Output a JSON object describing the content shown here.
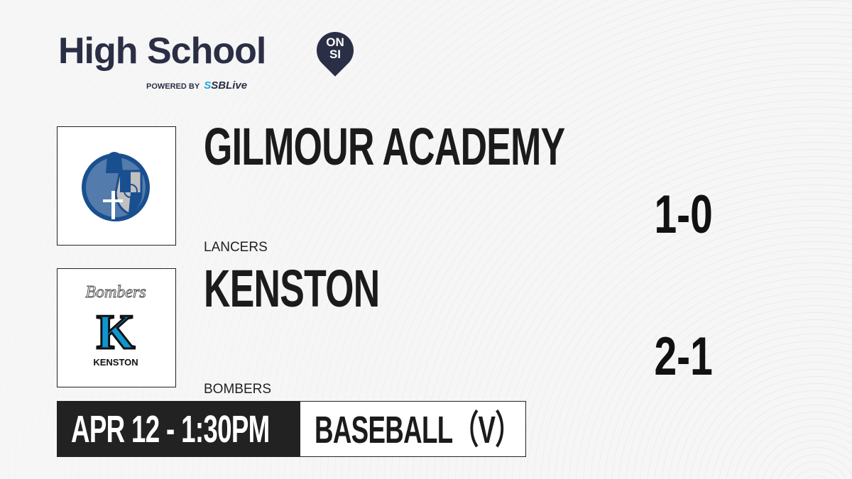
{
  "brand": {
    "title": "High School",
    "pin": "ON SI",
    "powered_by": "POWERED BY",
    "partner": "SBLive",
    "accent": "#1ca7e3",
    "dark": "#2b2f45"
  },
  "teams": [
    {
      "name": "GILMOUR ACADEMY",
      "mascot": "LANCERS",
      "record": "1-0",
      "logo": "knight-logo",
      "logo_color": "#1a4f8f"
    },
    {
      "name": "KENSTON",
      "mascot": "BOMBERS",
      "record": "2-1",
      "logo": "k-bombers-logo",
      "logo_text": "KENSTON",
      "logo_script": "Bombers",
      "logo_color": "#0f96d0"
    }
  ],
  "game": {
    "datetime": "APR 12 - 1:30PM",
    "sport": "BASEBALL（V）"
  }
}
